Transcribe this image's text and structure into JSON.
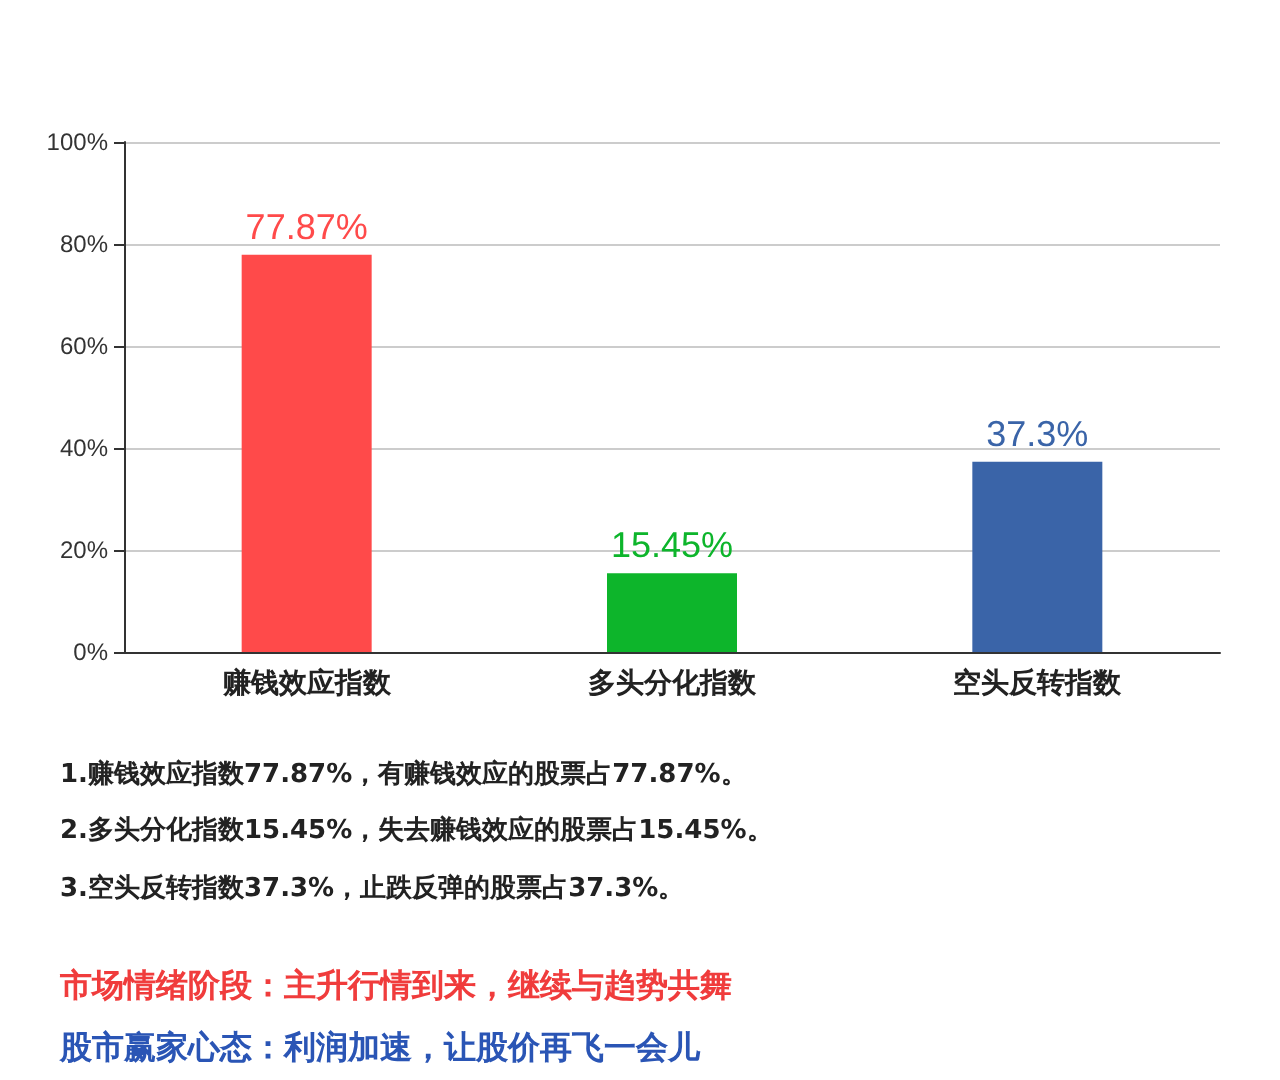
{
  "chart_data": {
    "type": "bar",
    "categories": [
      "赚钱效应指数",
      "多头分化指数",
      "空头反转指数"
    ],
    "values": [
      77.87,
      15.45,
      37.3
    ],
    "colors": [
      "#ff4a4a",
      "#0db52b",
      "#3a64a8"
    ],
    "value_labels": [
      "77.87%",
      "15.45%",
      "37.3%"
    ],
    "ylim": [
      0,
      100
    ],
    "yticks": [
      {
        "value": 0,
        "label": "0%"
      },
      {
        "value": 20,
        "label": "20%"
      },
      {
        "value": 40,
        "label": "40%"
      },
      {
        "value": 60,
        "label": "60%"
      },
      {
        "value": 80,
        "label": "80%"
      },
      {
        "value": 100,
        "label": "100%"
      }
    ],
    "grid": "y",
    "annotations": [
      "1.赚钱效应指数77.87%，有赚钱效应的股票占77.87%。",
      "2.多头分化指数15.45%，失去赚钱效应的股票占15.45%。",
      "3.空头反转指数37.3%，止跌反弹的股票占37.3%。",
      "市场情绪阶段：主升行情到来，继续与趋势共舞",
      "股市赢家心态：利润加速，让股价再飞一会儿"
    ]
  }
}
